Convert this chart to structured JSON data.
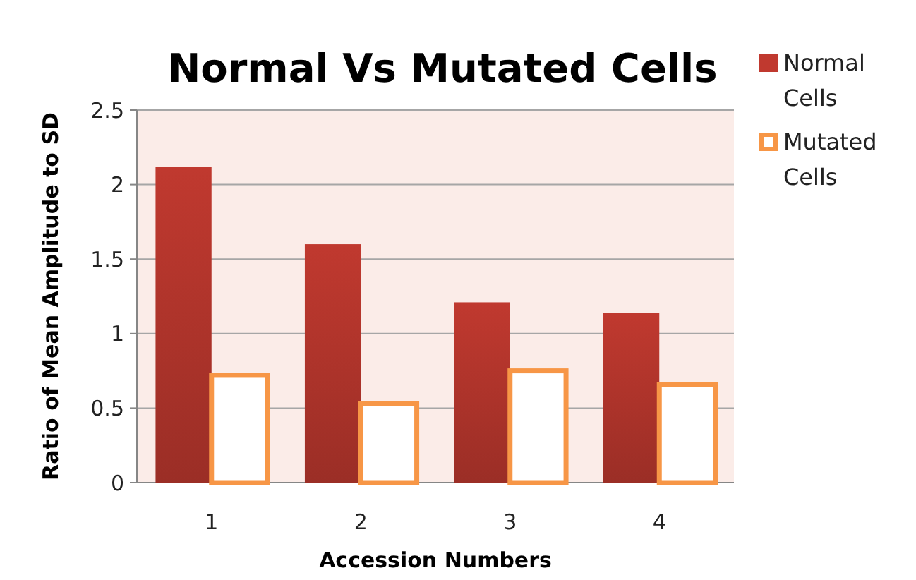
{
  "chart_data": {
    "type": "bar",
    "title": "Normal Vs Mutated Cells",
    "xlabel": "Accession Numbers",
    "ylabel": "Ratio of Mean Amplitude to SD",
    "categories": [
      "1",
      "2",
      "3",
      "4"
    ],
    "series": [
      {
        "name": "Normal Cells",
        "color": "#c0392f",
        "values": [
          2.12,
          1.6,
          1.21,
          1.14
        ]
      },
      {
        "name": "Mutated Cells",
        "color": "#f79646",
        "values": [
          0.72,
          0.53,
          0.75,
          0.66
        ]
      }
    ],
    "ylim": [
      0,
      2.5
    ],
    "yticks": [
      0,
      0.5,
      1,
      1.5,
      2,
      2.5
    ],
    "grid": "y",
    "legend": "top right"
  }
}
